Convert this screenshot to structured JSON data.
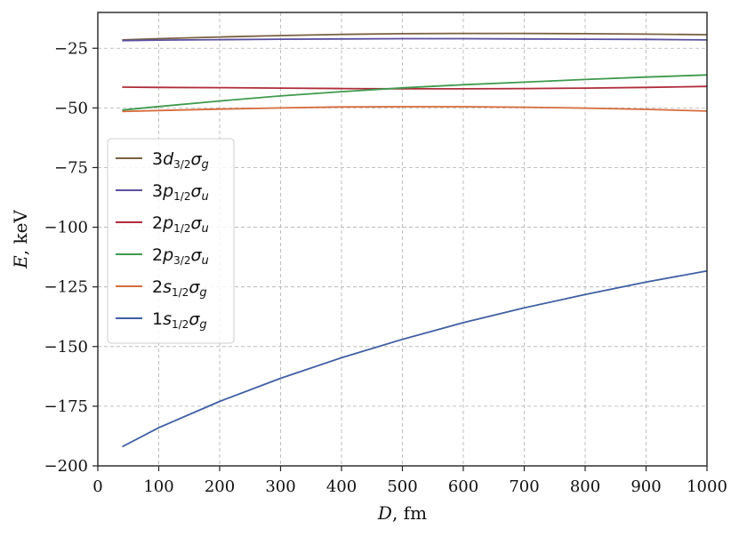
{
  "chart_data": {
    "type": "line",
    "xlabel_main": "D",
    "xlabel_unit": ", fm",
    "ylabel_main": "E",
    "ylabel_unit": ", keV",
    "xlim": [
      0,
      1000
    ],
    "ylim": [
      -200,
      -10
    ],
    "xticks": [
      0,
      100,
      200,
      300,
      400,
      500,
      600,
      700,
      800,
      900,
      1000
    ],
    "yticks": [
      -200,
      -175,
      -150,
      -125,
      -100,
      -75,
      -50,
      -25
    ],
    "xtick_labels": [
      "0",
      "100",
      "200",
      "300",
      "400",
      "500",
      "600",
      "700",
      "800",
      "900",
      "1000"
    ],
    "ytick_labels": [
      "−200",
      "−175",
      "−150",
      "−125",
      "−100",
      "−75",
      "−50",
      "−25"
    ],
    "grid": true,
    "legend_position": "center-left",
    "series": [
      {
        "name": "3d3/2σg",
        "legend": {
          "n": "3",
          "l": "d",
          "sub1": "3/2",
          "sub2": "g"
        },
        "color": "#7a6040",
        "x": [
          40,
          100,
          200,
          300,
          400,
          500,
          600,
          700,
          800,
          900,
          1000
        ],
        "y": [
          -21.5,
          -21.0,
          -20.3,
          -19.7,
          -19.2,
          -18.9,
          -18.8,
          -18.8,
          -18.9,
          -19.1,
          -19.3
        ]
      },
      {
        "name": "3p1/2σu",
        "legend": {
          "n": "3",
          "l": "p",
          "sub1": "1/2",
          "sub2": "u"
        },
        "color": "#5a4fa0",
        "x": [
          40,
          100,
          200,
          300,
          400,
          500,
          600,
          700,
          800,
          900,
          1000
        ],
        "y": [
          -21.8,
          -21.6,
          -21.4,
          -21.2,
          -21.1,
          -21.0,
          -21.0,
          -21.1,
          -21.2,
          -21.3,
          -21.5
        ]
      },
      {
        "name": "2p1/2σu",
        "legend": {
          "n": "2",
          "l": "p",
          "sub1": "1/2",
          "sub2": "u"
        },
        "color": "#b02c3a",
        "x": [
          40,
          100,
          200,
          300,
          400,
          500,
          600,
          700,
          800,
          900,
          1000
        ],
        "y": [
          -41.3,
          -41.4,
          -41.5,
          -41.7,
          -41.9,
          -42.0,
          -42.0,
          -41.9,
          -41.7,
          -41.4,
          -41.0
        ]
      },
      {
        "name": "2p3/2σu",
        "legend": {
          "n": "2",
          "l": "p",
          "sub1": "3/2",
          "sub2": "u"
        },
        "color": "#3f9a4e",
        "x": [
          40,
          100,
          200,
          300,
          400,
          500,
          600,
          700,
          800,
          900,
          1000
        ],
        "y": [
          -50.9,
          -49.4,
          -47.1,
          -45.0,
          -43.2,
          -41.6,
          -40.3,
          -39.2,
          -38.1,
          -37.1,
          -36.2
        ]
      },
      {
        "name": "2s1/2σg",
        "legend": {
          "n": "2",
          "l": "s",
          "sub1": "1/2",
          "sub2": "g"
        },
        "color": "#d66b3a",
        "x": [
          40,
          100,
          200,
          300,
          400,
          500,
          600,
          700,
          800,
          900,
          1000
        ],
        "y": [
          -51.5,
          -51.1,
          -50.5,
          -50.0,
          -49.6,
          -49.5,
          -49.5,
          -49.7,
          -50.1,
          -50.6,
          -51.3
        ]
      },
      {
        "name": "1s1/2σg",
        "legend": {
          "n": "1",
          "l": "s",
          "sub1": "1/2",
          "sub2": "g"
        },
        "color": "#3f5fa3",
        "x": [
          40,
          100,
          200,
          300,
          400,
          500,
          600,
          700,
          800,
          900,
          1000
        ],
        "y": [
          -192.0,
          -184.0,
          -173.0,
          -163.3,
          -154.7,
          -147.0,
          -140.0,
          -133.8,
          -128.2,
          -123.0,
          -118.3
        ]
      }
    ]
  }
}
